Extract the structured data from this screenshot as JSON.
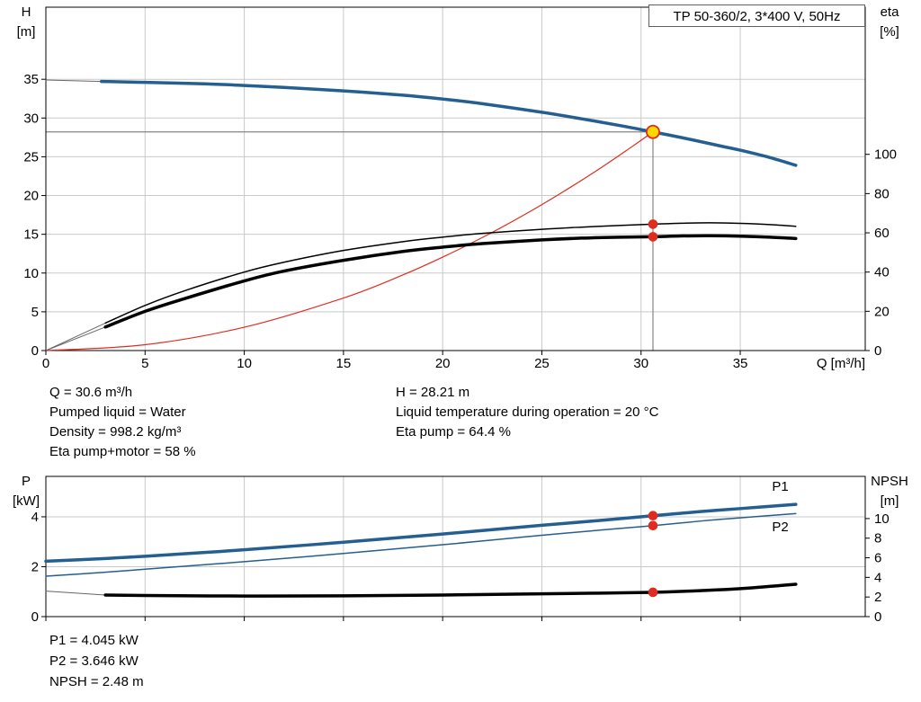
{
  "colors": {
    "blue": "#255e91",
    "red": "#e02b20",
    "duty_fill": "#ffd800",
    "black": "#000000",
    "leadin": "#666666",
    "grid": "#c9c9c9",
    "crosshair": "#858585",
    "border": "#000000"
  },
  "title_box": {
    "label": "TP 50-360/2, 3*400 V, 50Hz"
  },
  "chart_data": [
    {
      "type": "line",
      "name": "hq-eta-chart",
      "x": {
        "label": "Q [m³/h]",
        "min": 0,
        "max": 41.3,
        "ticks": [
          0,
          5,
          10,
          15,
          20,
          25,
          30,
          35
        ],
        "tick_labels": true
      },
      "y_left": {
        "label": [
          "H",
          "[m]"
        ],
        "min": 0,
        "max": 44.3,
        "ticks": [
          0,
          5,
          10,
          15,
          20,
          25,
          30,
          35
        ]
      },
      "y_right": {
        "label": [
          "eta",
          "[%]"
        ],
        "min": 0,
        "max": 175,
        "ticks": [
          0,
          20,
          40,
          60,
          80,
          100
        ]
      },
      "series": [
        {
          "name": "h-curve-leadin",
          "axis": "left",
          "color": "leadin",
          "width": 1,
          "points": [
            [
              0,
              34.9
            ],
            [
              2.8,
              34.72
            ]
          ]
        },
        {
          "name": "h-curve",
          "axis": "left",
          "color": "blue",
          "width": 3.5,
          "points": [
            [
              2.8,
              34.72
            ],
            [
              5,
              34.6
            ],
            [
              8,
              34.42
            ],
            [
              10,
              34.2
            ],
            [
              12,
              33.95
            ],
            [
              15,
              33.5
            ],
            [
              18,
              32.95
            ],
            [
              20,
              32.45
            ],
            [
              22,
              31.85
            ],
            [
              25,
              30.75
            ],
            [
              27,
              29.9
            ],
            [
              29,
              29.0
            ],
            [
              30.6,
              28.21
            ],
            [
              32,
              27.5
            ],
            [
              34,
              26.4
            ],
            [
              35,
              25.85
            ],
            [
              36.5,
              24.9
            ],
            [
              37.8,
              23.9
            ]
          ]
        },
        {
          "name": "system-curve",
          "axis": "left",
          "color": "red",
          "width": 1.2,
          "points": [
            [
              0,
              0
            ],
            [
              5,
              0.75
            ],
            [
              10,
              3.01
            ],
            [
              15,
              6.78
            ],
            [
              18,
              9.76
            ],
            [
              20,
              12.05
            ],
            [
              22,
              14.58
            ],
            [
              24,
              17.35
            ],
            [
              26,
              20.37
            ],
            [
              28,
              23.62
            ],
            [
              29.5,
              26.23
            ],
            [
              30.6,
              28.21
            ]
          ]
        },
        {
          "name": "eta-pump-leadin",
          "axis": "right",
          "color": "leadin",
          "width": 1,
          "points": [
            [
              0,
              0
            ],
            [
              3,
              14
            ]
          ]
        },
        {
          "name": "eta-pump-curve",
          "axis": "right",
          "color": "black",
          "width": 1.5,
          "points": [
            [
              3,
              14
            ],
            [
              5,
              23
            ],
            [
              7,
              30.5
            ],
            [
              10,
              40
            ],
            [
              12,
              45
            ],
            [
              15,
              51
            ],
            [
              18,
              55.5
            ],
            [
              20,
              57.8
            ],
            [
              22,
              59.7
            ],
            [
              25,
              61.8
            ],
            [
              27,
              62.9
            ],
            [
              29,
              63.8
            ],
            [
              30.6,
              64.4
            ],
            [
              32,
              64.9
            ],
            [
              33.5,
              65.1
            ],
            [
              35,
              64.8
            ],
            [
              36.5,
              64.2
            ],
            [
              37.8,
              63.3
            ]
          ]
        },
        {
          "name": "eta-pump-motor-leadin",
          "axis": "right",
          "color": "leadin",
          "width": 1,
          "points": [
            [
              0,
              0
            ],
            [
              3,
              12
            ]
          ]
        },
        {
          "name": "eta-pump-motor-curve",
          "axis": "right",
          "color": "black",
          "width": 3.5,
          "points": [
            [
              3,
              12
            ],
            [
              5,
              20
            ],
            [
              7,
              26.5
            ],
            [
              10,
              35.5
            ],
            [
              12,
              40.5
            ],
            [
              15,
              46
            ],
            [
              18,
              50.5
            ],
            [
              20,
              52.7
            ],
            [
              22,
              54.5
            ],
            [
              25,
              56.4
            ],
            [
              27,
              57.3
            ],
            [
              29,
              57.8
            ],
            [
              30.6,
              58.0
            ],
            [
              32,
              58.4
            ],
            [
              33.5,
              58.5
            ],
            [
              35,
              58.3
            ],
            [
              36.5,
              57.8
            ],
            [
              37.8,
              57.1
            ]
          ]
        }
      ],
      "markers": [
        {
          "name": "duty-point",
          "axis": "left",
          "x": 30.6,
          "y": 28.21,
          "style": "duty"
        },
        {
          "name": "eta-pump-point",
          "axis": "right",
          "x": 30.6,
          "y": 64.4,
          "style": "dot"
        },
        {
          "name": "eta-pump-motor-point",
          "axis": "right",
          "x": 30.6,
          "y": 58.0,
          "style": "dot"
        }
      ],
      "crosshair": {
        "x": 30.6,
        "y": 28.21
      }
    },
    {
      "type": "line",
      "name": "power-npsh-chart",
      "x": {
        "label": "",
        "min": 0,
        "max": 41.3,
        "ticks": [
          0,
          5,
          10,
          15,
          20,
          25,
          30,
          35
        ],
        "tick_labels": false
      },
      "y_left": {
        "label": [
          "P",
          "[kW]"
        ],
        "min": 0,
        "max": 5.62,
        "ticks": [
          0,
          2,
          4
        ]
      },
      "y_right": {
        "label": [
          "NPSH",
          "[m]"
        ],
        "min": 0,
        "max": 14.3,
        "ticks": [
          0,
          2,
          4,
          6,
          8,
          10
        ]
      },
      "series": [
        {
          "name": "p2-curve",
          "axis": "left",
          "color": "blue",
          "width": 1.5,
          "points": [
            [
              0,
              1.62
            ],
            [
              3,
              1.78
            ],
            [
              5,
              1.9
            ],
            [
              8,
              2.08
            ],
            [
              10,
              2.2
            ],
            [
              15,
              2.53
            ],
            [
              20,
              2.88
            ],
            [
              25,
              3.26
            ],
            [
              28,
              3.47
            ],
            [
              30.6,
              3.646
            ],
            [
              33,
              3.83
            ],
            [
              35,
              3.96
            ],
            [
              37.8,
              4.13
            ]
          ]
        },
        {
          "name": "p1-curve",
          "axis": "left",
          "color": "blue",
          "width": 3.5,
          "points": [
            [
              0,
              2.22
            ],
            [
              3,
              2.33
            ],
            [
              5,
              2.42
            ],
            [
              8,
              2.57
            ],
            [
              10,
              2.68
            ],
            [
              15,
              2.98
            ],
            [
              20,
              3.31
            ],
            [
              25,
              3.66
            ],
            [
              28,
              3.86
            ],
            [
              30.6,
              4.045
            ],
            [
              33,
              4.21
            ],
            [
              35,
              4.33
            ],
            [
              37.8,
              4.5
            ]
          ]
        },
        {
          "name": "npsh-leadin",
          "axis": "right",
          "color": "leadin",
          "width": 1,
          "points": [
            [
              0,
              2.6
            ],
            [
              3,
              2.2
            ]
          ]
        },
        {
          "name": "npsh-curve",
          "axis": "right",
          "color": "black",
          "width": 3.5,
          "points": [
            [
              3,
              2.2
            ],
            [
              5,
              2.15
            ],
            [
              10,
              2.1
            ],
            [
              15,
              2.12
            ],
            [
              20,
              2.2
            ],
            [
              25,
              2.33
            ],
            [
              28,
              2.4
            ],
            [
              30.6,
              2.48
            ],
            [
              33,
              2.65
            ],
            [
              35,
              2.85
            ],
            [
              37.8,
              3.3
            ]
          ]
        }
      ],
      "markers": [
        {
          "name": "p1-point",
          "axis": "left",
          "x": 30.6,
          "y": 4.045,
          "style": "dot"
        },
        {
          "name": "p2-point",
          "axis": "left",
          "x": 30.6,
          "y": 3.646,
          "style": "dot"
        },
        {
          "name": "npsh-point",
          "axis": "right",
          "x": 30.6,
          "y": 2.48,
          "style": "dot"
        }
      ],
      "labels": [
        {
          "name": "p1-label",
          "text": "P1",
          "axis": "left",
          "x": 36.6,
          "y": 5.05,
          "color": "blue"
        },
        {
          "name": "p2-label",
          "text": "P2",
          "axis": "left",
          "x": 36.6,
          "y": 3.42,
          "color": "blue"
        }
      ]
    }
  ],
  "info_top": {
    "q": "Q = 30.6 m³/h",
    "liquid": "Pumped liquid = Water",
    "density": "Density = 998.2 kg/m³",
    "eta_pm": "Eta pump+motor = 58 %",
    "h": "H = 28.21 m",
    "temp": "Liquid temperature during operation = 20 °C",
    "eta_p": "Eta pump = 64.4 %"
  },
  "info_bottom": {
    "p1": "P1 = 4.045 kW",
    "p2": "P2 = 3.646 kW",
    "npsh": "NPSH = 2.48 m"
  }
}
